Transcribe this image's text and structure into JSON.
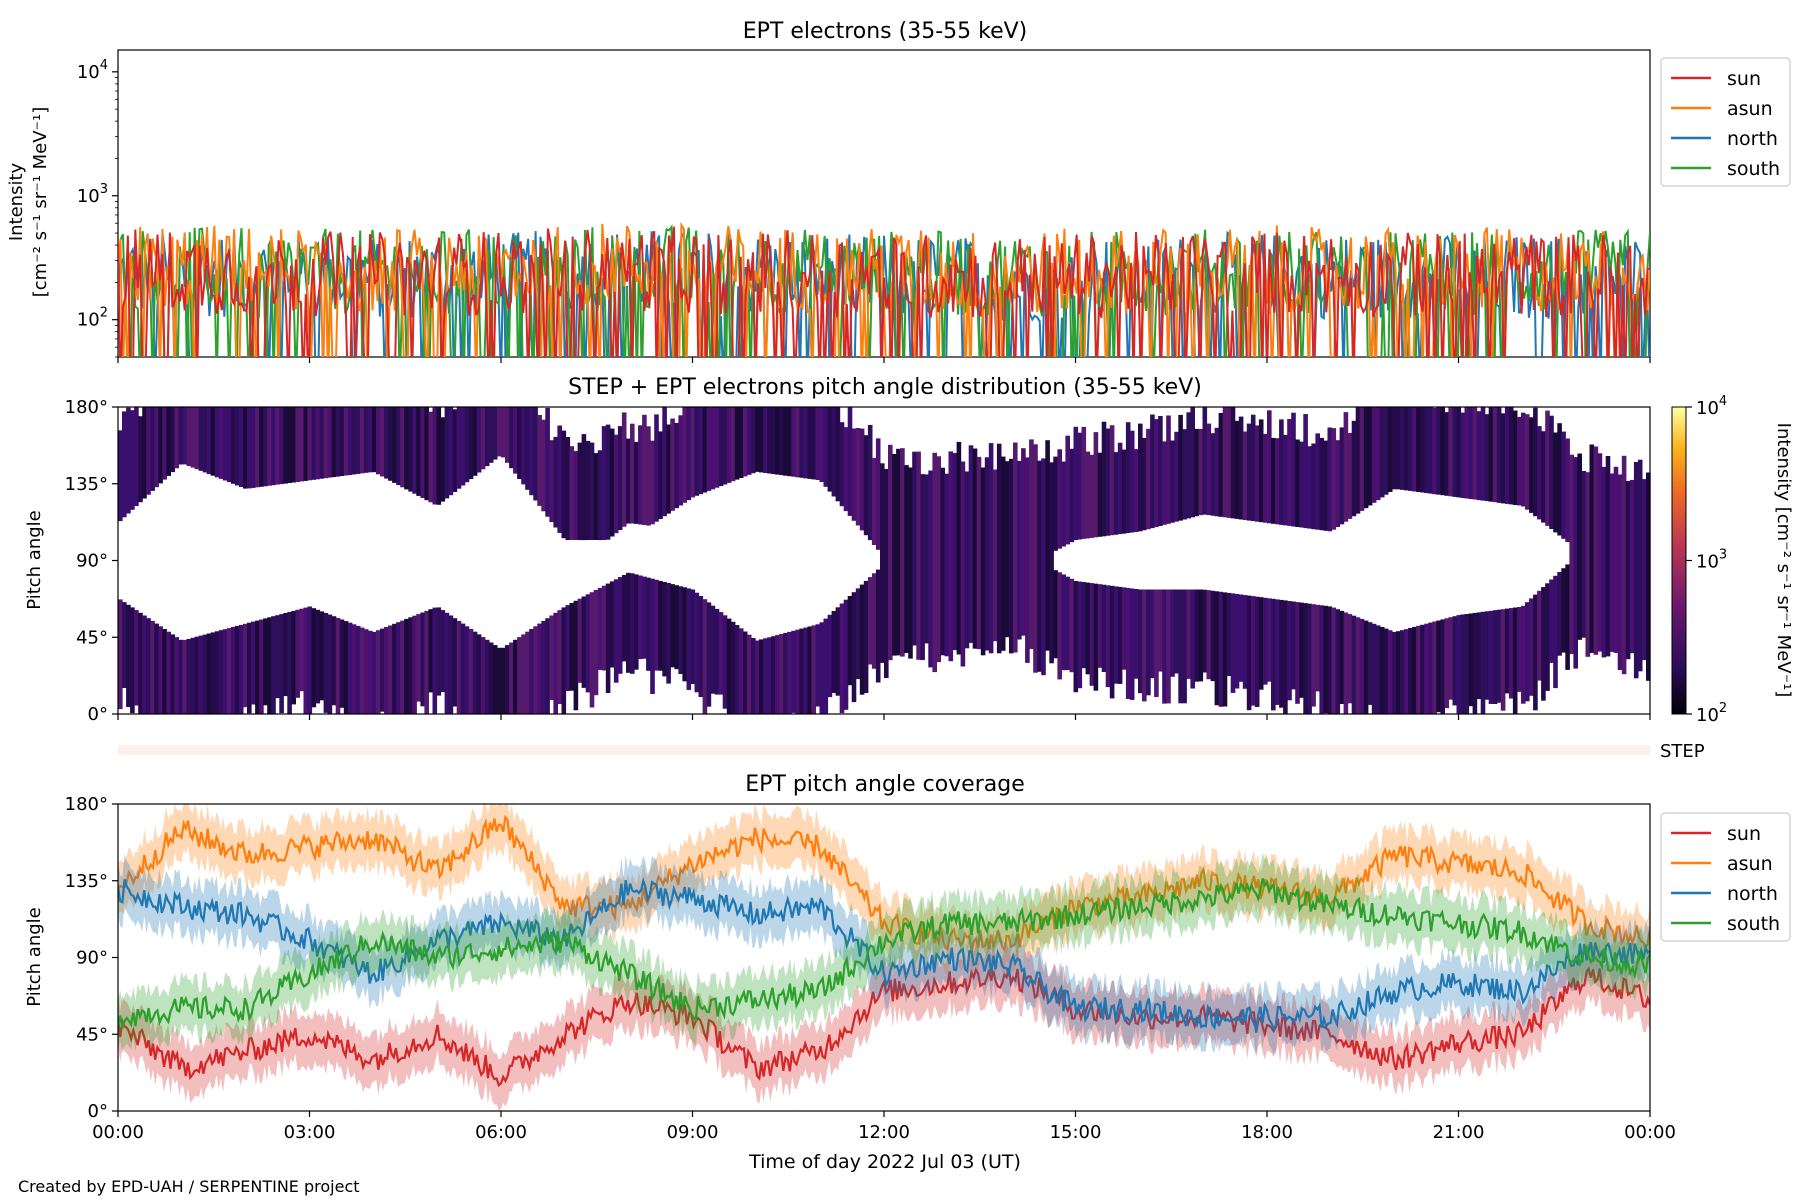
{
  "colors": {
    "sun": "#d62728",
    "asun": "#ff7f0e",
    "north": "#1f77b4",
    "south": "#2ca02c",
    "pad_fill": "#2d0f5c",
    "step_bar": "#fdf1ec"
  },
  "legend": {
    "entries": [
      {
        "key": "sun",
        "label": "sun"
      },
      {
        "key": "asun",
        "label": "asun"
      },
      {
        "key": "north",
        "label": "north"
      },
      {
        "key": "south",
        "label": "south"
      }
    ]
  },
  "panel1": {
    "title": "EPT electrons (35-55 keV)",
    "ylabel_line1": "Intensity",
    "ylabel_line2": "[cm⁻² s⁻¹ sr⁻¹ MeV⁻¹]",
    "yticks": [
      {
        "base": "10",
        "exp": "2",
        "v": 100
      },
      {
        "base": "10",
        "exp": "3",
        "v": 1000
      },
      {
        "base": "10",
        "exp": "4",
        "v": 10000
      }
    ]
  },
  "panel2": {
    "title": "STEP + EPT electrons pitch angle distribution (35-55 keV)",
    "ylabel": "Pitch angle",
    "yticks": [
      "0°",
      "45°",
      "90°",
      "135°",
      "180°"
    ],
    "colorbar": {
      "label": "Intensity [cm⁻² s⁻¹ sr⁻¹ MeV⁻¹]",
      "ticks": [
        {
          "base": "10",
          "exp": "2"
        },
        {
          "base": "10",
          "exp": "3"
        },
        {
          "base": "10",
          "exp": "4"
        }
      ]
    }
  },
  "step_label": "STEP",
  "panel3": {
    "title": "EPT pitch angle coverage",
    "ylabel": "Pitch angle",
    "yticks": [
      "0°",
      "45°",
      "90°",
      "135°",
      "180°"
    ]
  },
  "xaxis": {
    "label": "Time of day 2022 Jul 03 (UT)",
    "ticks": [
      "00:00",
      "03:00",
      "06:00",
      "09:00",
      "12:00",
      "15:00",
      "18:00",
      "21:00",
      "00:00"
    ]
  },
  "footer": "Created by EPD-UAH / SERPENTINE project",
  "chart_data": [
    {
      "type": "line",
      "title": "EPT electrons (35-55 keV)",
      "xlabel": "",
      "ylabel": "Intensity [cm⁻² s⁻¹ sr⁻¹ MeV⁻¹]",
      "yscale": "log",
      "ylim": [
        50,
        15000
      ],
      "xlim": [
        "00:00",
        "24:00"
      ],
      "legend": "top-right outside",
      "x_hours": [
        0,
        2,
        4,
        6,
        8,
        10,
        12,
        14,
        16,
        18,
        20,
        22,
        24
      ],
      "series": [
        {
          "name": "sun",
          "values": [
            250,
            240,
            230,
            240,
            260,
            240,
            230,
            220,
            230,
            240,
            230,
            230,
            230
          ]
        },
        {
          "name": "asun",
          "values": [
            280,
            260,
            250,
            270,
            280,
            260,
            250,
            240,
            250,
            260,
            250,
            250,
            250
          ]
        },
        {
          "name": "north",
          "values": [
            230,
            230,
            220,
            230,
            250,
            230,
            220,
            210,
            220,
            230,
            220,
            220,
            220
          ]
        },
        {
          "name": "south",
          "values": [
            260,
            250,
            240,
            250,
            270,
            250,
            240,
            230,
            240,
            250,
            240,
            240,
            240
          ]
        }
      ]
    },
    {
      "type": "heatmap",
      "title": "STEP + EPT electrons pitch angle distribution (35-55 keV)",
      "ylabel": "Pitch angle",
      "ylim": [
        0,
        180
      ],
      "colorbar": {
        "label": "Intensity [cm⁻² s⁻¹ sr⁻¹ MeV⁻¹]",
        "scale": "log",
        "range": [
          100,
          10000
        ]
      },
      "approx_intensity": 250
    },
    {
      "type": "line",
      "title": "EPT pitch angle coverage",
      "xlabel": "Time of day 2022 Jul 03 (UT)",
      "ylabel": "Pitch angle",
      "ylim": [
        0,
        180
      ],
      "legend": "top-right outside",
      "x_hours": [
        0,
        1,
        2,
        3,
        4,
        5,
        6,
        7,
        8,
        9,
        10,
        11,
        12,
        13,
        14,
        15,
        16,
        17,
        18,
        19,
        20,
        21,
        22,
        23,
        24
      ],
      "series": [
        {
          "name": "sun",
          "values": [
            50,
            25,
            35,
            45,
            30,
            45,
            20,
            45,
            65,
            55,
            25,
            35,
            70,
            75,
            80,
            60,
            55,
            55,
            50,
            45,
            30,
            40,
            45,
            80,
            65
          ]
        },
        {
          "name": "asun",
          "values": [
            130,
            165,
            150,
            155,
            160,
            140,
            170,
            120,
            120,
            145,
            160,
            155,
            110,
            100,
            100,
            120,
            125,
            135,
            130,
            125,
            150,
            145,
            140,
            110,
            100
          ]
        },
        {
          "name": "north",
          "values": [
            130,
            120,
            115,
            100,
            80,
            100,
            110,
            100,
            130,
            125,
            115,
            120,
            80,
            90,
            85,
            60,
            60,
            55,
            55,
            55,
            70,
            75,
            70,
            95,
            90
          ]
        },
        {
          "name": "south",
          "values": [
            55,
            60,
            60,
            80,
            100,
            90,
            95,
            100,
            80,
            60,
            65,
            70,
            100,
            110,
            110,
            115,
            120,
            125,
            130,
            120,
            115,
            110,
            105,
            90,
            85
          ]
        }
      ]
    }
  ]
}
